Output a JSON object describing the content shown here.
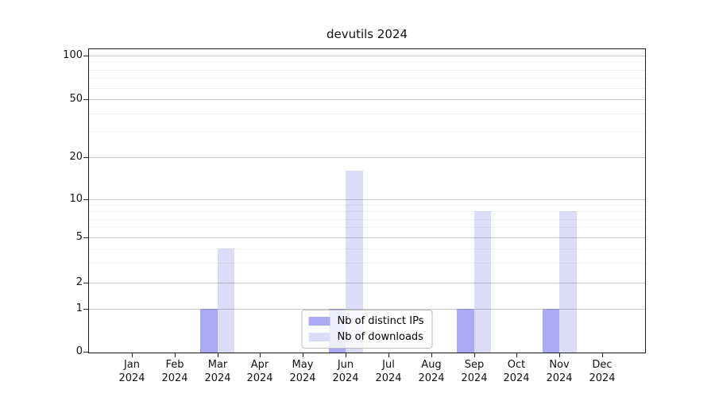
{
  "chart_data": {
    "type": "bar",
    "title": "devutils 2024",
    "categories": [
      "Jan",
      "Feb",
      "Mar",
      "Apr",
      "May",
      "Jun",
      "Jul",
      "Aug",
      "Sep",
      "Oct",
      "Nov",
      "Dec"
    ],
    "year_label": "2024",
    "series": [
      {
        "name": "Nb of distinct IPs",
        "color": "#a9a9f4",
        "values": [
          0,
          0,
          1,
          0,
          0,
          1,
          0,
          0,
          1,
          0,
          1,
          0
        ]
      },
      {
        "name": "Nb of downloads",
        "color": "#dcdcf9",
        "values": [
          0,
          0,
          4,
          0,
          0,
          16,
          0,
          0,
          8,
          0,
          8,
          0
        ]
      }
    ],
    "y_axis": {
      "scale": "symlog",
      "major_ticks": [
        0,
        1,
        2,
        5,
        10,
        20,
        50,
        100
      ],
      "minor_ticks": [
        3,
        4,
        6,
        7,
        8,
        9,
        30,
        40,
        60,
        70,
        80,
        90
      ],
      "ylim": [
        0,
        110
      ]
    },
    "legend": {
      "position": "lower center"
    },
    "grid": true
  },
  "colors": {
    "spine": "#1a1a1a",
    "grid_major": "#cbcbcb",
    "grid_minor": "#eeeeee",
    "legend_border": "#bdbdbd"
  }
}
